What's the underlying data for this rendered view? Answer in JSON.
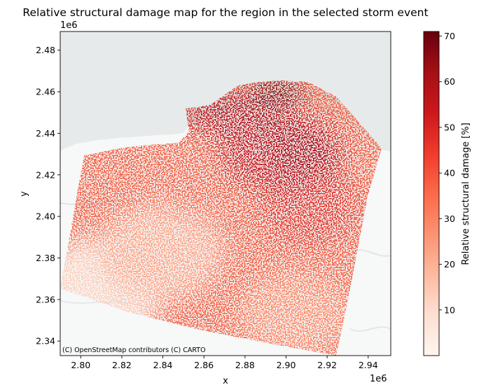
{
  "chart_data": {
    "type": "heatmap",
    "title": "Relative structural damage map for the region in the selected storm event",
    "xlabel": "x",
    "ylabel": "y",
    "x_offset_label": "1e6",
    "y_offset_label": "1e6",
    "xlim": [
      2.79,
      2.951
    ],
    "ylim": [
      2.333,
      2.489
    ],
    "x_ticks": [
      2.8,
      2.82,
      2.84,
      2.86,
      2.88,
      2.9,
      2.92,
      2.94
    ],
    "x_tick_labels": [
      "2.80",
      "2.82",
      "2.84",
      "2.86",
      "2.88",
      "2.90",
      "2.92",
      "2.94"
    ],
    "y_ticks": [
      2.34,
      2.36,
      2.38,
      2.4,
      2.42,
      2.44,
      2.46,
      2.48
    ],
    "y_tick_labels": [
      "2.34",
      "2.36",
      "2.38",
      "2.40",
      "2.42",
      "2.44",
      "2.46",
      "2.48"
    ],
    "colorbar": {
      "label": "Relative structural damage [%]",
      "colormap": "Reds",
      "range": [
        0,
        71
      ],
      "ticks": [
        10,
        20,
        30,
        40,
        50,
        60,
        70
      ],
      "tick_labels": [
        "10",
        "20",
        "30",
        "40",
        "50",
        "60",
        "70"
      ]
    },
    "attribution": "(C) OpenStreetMap contributors (C) CARTO",
    "basemap": {
      "sea_color": "#e6eaea",
      "land_color": "#f7f8f8"
    },
    "damage_pattern": "Higher damage (50-71%) concentrated in the north-east coastal zone near x 2.89-2.92, y 2.42-2.46; moderate damage (25-40%) across the central and southern region; lowest damage (5-20%) toward the south-west."
  }
}
